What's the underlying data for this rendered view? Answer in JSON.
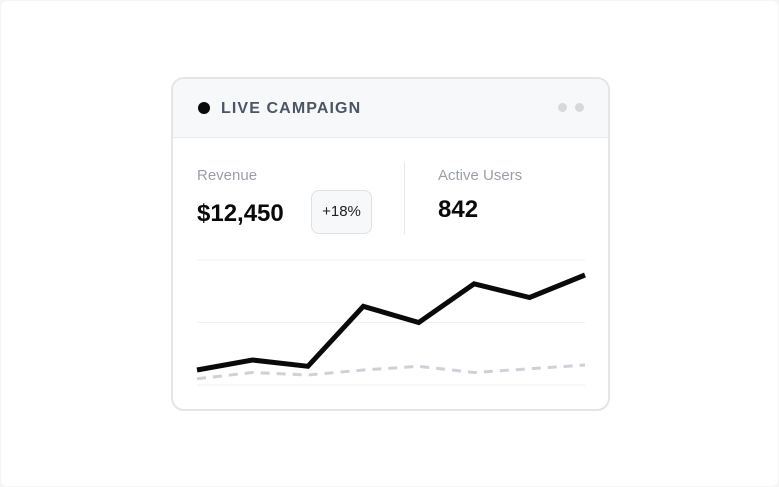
{
  "header": {
    "title": "LIVE CAMPAIGN",
    "live_indicator_color": "#0a0a0a",
    "menu_icon": "more-dots-icon"
  },
  "metrics": {
    "revenue": {
      "label": "Revenue",
      "value": "$12,450",
      "change": "+18%"
    },
    "active_users": {
      "label": "Active Users",
      "value": "842"
    }
  },
  "chart_data": {
    "type": "line",
    "x": [
      1,
      2,
      3,
      4,
      5,
      6,
      7,
      8
    ],
    "ylim": [
      0,
      100
    ],
    "grid": true,
    "series": [
      {
        "values": [
          12,
          20,
          15,
          63,
          50,
          81,
          70,
          88
        ],
        "color": "#0a0a0a",
        "style": "solid"
      },
      {
        "values": [
          5,
          10,
          8,
          12,
          15,
          10,
          13,
          16
        ],
        "color": "#cdd1d8",
        "style": "dashed"
      }
    ]
  }
}
